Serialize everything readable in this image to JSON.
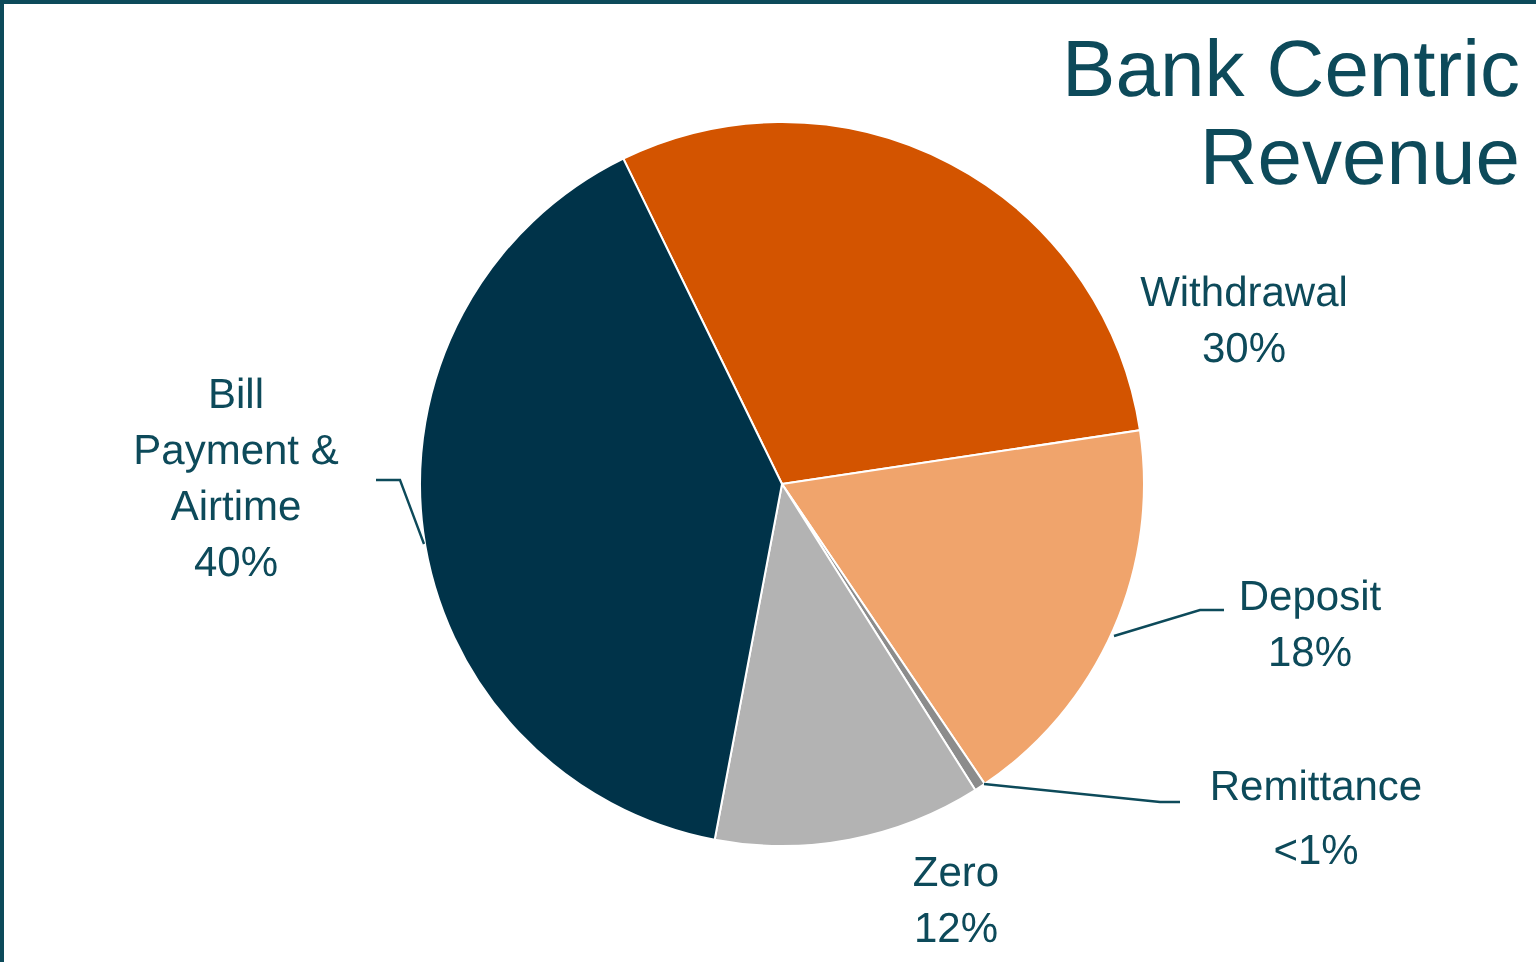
{
  "chart_data": {
    "type": "pie",
    "title": "Bank Centric\nRevenue",
    "categories": [
      "Withdrawal",
      "Deposit",
      "Remittance",
      "Zero",
      "Bill Payment & Airtime"
    ],
    "values": [
      30,
      18,
      0.5,
      12,
      40
    ],
    "value_labels": [
      "30%",
      "18%",
      "<1%",
      "12%",
      "40%"
    ],
    "colors": [
      "#d35400",
      "#f0a46c",
      "#8c8c8c",
      "#b3b3b3",
      "#003349"
    ]
  }
}
